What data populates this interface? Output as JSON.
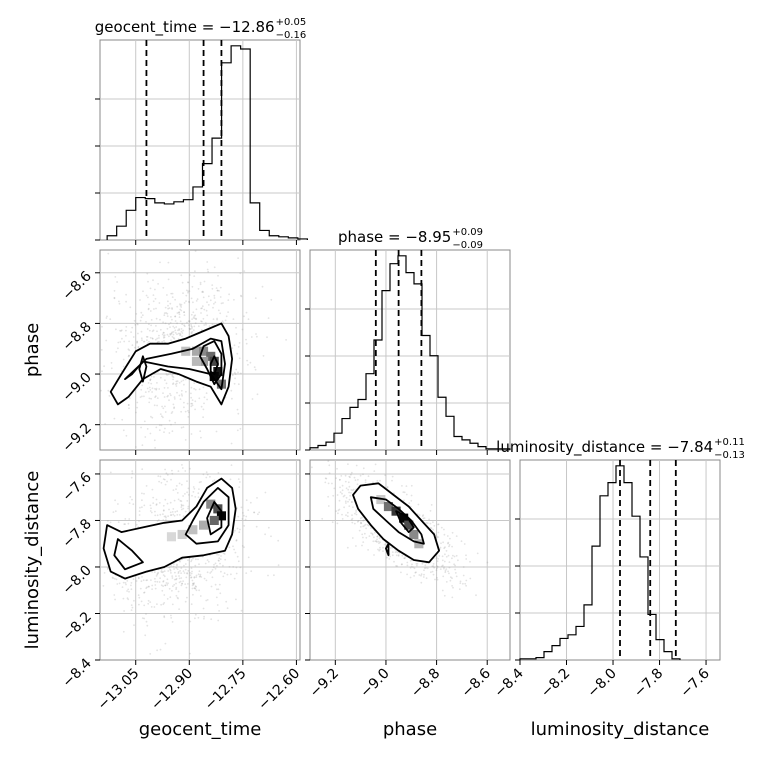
{
  "chart_data": {
    "type": "corner",
    "parameters": [
      "geocent_time",
      "phase",
      "luminosity_distance"
    ],
    "axis_labels": [
      "geocent_time",
      "phase",
      "luminosity_distance"
    ],
    "ranges": [
      [
        -13.15,
        -12.59
      ],
      [
        -9.3,
        -8.51
      ],
      [
        -8.4,
        -7.54
      ]
    ],
    "ticks": [
      {
        "values": [
          -13.05,
          -12.9,
          -12.75,
          -12.6
        ],
        "labels": [
          "−13.05",
          "−12.90",
          "−12.75",
          "−12.60"
        ]
      },
      {
        "values": [
          -9.2,
          -9.0,
          -8.8,
          -8.6
        ],
        "labels": [
          "−9.2",
          "−9.0",
          "−8.8",
          "−8.6"
        ]
      },
      {
        "values": [
          -8.4,
          -8.2,
          -8.0,
          -7.8,
          -7.6
        ],
        "labels": [
          "−8.4",
          "−8.2",
          "−8.0",
          "−7.8",
          "−7.6"
        ]
      }
    ],
    "grid": true,
    "summaries": [
      {
        "name": "geocent_time",
        "median": "−12.86",
        "plus": "+0.05",
        "minus": "−0.16",
        "quantiles": [
          -13.02,
          -12.86,
          -12.81
        ]
      },
      {
        "name": "phase",
        "median": "−8.95",
        "plus": "+0.09",
        "minus": "−0.09",
        "quantiles": [
          -9.04,
          -8.95,
          -8.86
        ]
      },
      {
        "name": "luminosity_distance",
        "median": "−7.84",
        "plus": "+0.11",
        "minus": "−0.13",
        "quantiles": [
          -7.97,
          -7.84,
          -7.73
        ]
      }
    ],
    "histograms": [
      {
        "param": 0,
        "edges_start": -13.13,
        "bin_width": 0.0267,
        "counts": [
          4,
          13,
          28,
          40,
          39,
          35,
          34,
          36,
          38,
          50,
          72,
          96,
          167,
          183,
          180,
          35,
          9,
          4,
          3,
          2,
          1
        ]
      },
      {
        "param": 1,
        "edges_start": -9.3,
        "bin_width": 0.0316,
        "counts": [
          2,
          4,
          7,
          15,
          28,
          38,
          45,
          68,
          98,
          142,
          166,
          173,
          158,
          148,
          102,
          84,
          47,
          30,
          12,
          9,
          6,
          3,
          1,
          1,
          1
        ]
      },
      {
        "param": 2,
        "edges_start": -8.4,
        "bin_width": 0.0344,
        "counts": [
          1,
          1,
          2,
          7,
          12,
          18,
          21,
          28,
          46,
          95,
          137,
          148,
          162,
          148,
          120,
          86,
          38,
          17,
          7,
          1
        ]
      }
    ],
    "joint": [
      {
        "x": 0,
        "y": 1,
        "contours": [
          [
            [
              -13.12,
              -9.07
            ],
            [
              -13.09,
              -9.0
            ],
            [
              -13.05,
              -8.91
            ],
            [
              -13.01,
              -8.88
            ],
            [
              -12.96,
              -8.88
            ],
            [
              -12.91,
              -8.86
            ],
            [
              -12.86,
              -8.83
            ],
            [
              -12.81,
              -8.8
            ],
            [
              -12.79,
              -8.85
            ],
            [
              -12.78,
              -8.94
            ],
            [
              -12.79,
              -9.05
            ],
            [
              -12.81,
              -9.12
            ],
            [
              -12.84,
              -9.05
            ],
            [
              -12.88,
              -9.03
            ],
            [
              -12.93,
              -9.0
            ],
            [
              -12.98,
              -8.98
            ],
            [
              -13.03,
              -9.02
            ],
            [
              -13.07,
              -9.09
            ],
            [
              -13.1,
              -9.12
            ]
          ],
          [
            [
              -13.08,
              -9.02
            ],
            [
              -13.02,
              -8.94
            ],
            [
              -12.95,
              -8.92
            ],
            [
              -12.89,
              -8.9
            ],
            [
              -12.84,
              -8.86
            ],
            [
              -12.81,
              -8.87
            ],
            [
              -12.8,
              -8.96
            ],
            [
              -12.81,
              -9.06
            ],
            [
              -12.84,
              -9.0
            ],
            [
              -12.9,
              -8.98
            ],
            [
              -12.96,
              -8.97
            ],
            [
              -13.03,
              -8.95
            ],
            [
              -13.06,
              -9.0
            ]
          ],
          [
            [
              -12.86,
              -8.89
            ],
            [
              -12.83,
              -8.87
            ],
            [
              -12.81,
              -8.92
            ],
            [
              -12.81,
              -9.0
            ],
            [
              -12.83,
              -9.04
            ],
            [
              -12.85,
              -8.98
            ],
            [
              -12.87,
              -8.93
            ]
          ],
          [
            [
              -12.84,
              -8.96
            ],
            [
              -12.83,
              -8.93
            ],
            [
              -12.82,
              -8.96
            ],
            [
              -12.83,
              -9.0
            ],
            [
              -12.84,
              -8.99
            ]
          ],
          [
            [
              -13.04,
              -8.98
            ],
            [
              -13.03,
              -8.93
            ],
            [
              -13.02,
              -8.97
            ],
            [
              -13.03,
              -9.03
            ]
          ]
        ],
        "density_cells": [
          {
            "x": -12.91,
            "y": -8.91,
            "level": 0.22
          },
          {
            "x": -12.88,
            "y": -8.91,
            "level": 0.32
          },
          {
            "x": -12.86,
            "y": -8.91,
            "level": 0.45
          },
          {
            "x": -12.84,
            "y": -8.93,
            "level": 0.58
          },
          {
            "x": -12.83,
            "y": -8.95,
            "level": 0.72
          },
          {
            "x": -12.82,
            "y": -8.99,
            "level": 0.92
          },
          {
            "x": -12.83,
            "y": -9.01,
            "level": 1.0
          },
          {
            "x": -12.86,
            "y": -8.95,
            "level": 0.38
          },
          {
            "x": -12.88,
            "y": -8.95,
            "level": 0.25
          },
          {
            "x": -12.81,
            "y": -9.04,
            "level": 0.55
          }
        ],
        "scatter_extent": {
          "x": [
            -13.14,
            -12.72
          ],
          "y": [
            -9.24,
            -8.58
          ]
        }
      },
      {
        "x": 0,
        "y": 2,
        "contours": [
          [
            [
              -13.13,
              -7.82
            ],
            [
              -13.09,
              -7.85
            ],
            [
              -13.03,
              -7.83
            ],
            [
              -12.97,
              -7.81
            ],
            [
              -12.92,
              -7.8
            ],
            [
              -12.88,
              -7.74
            ],
            [
              -12.85,
              -7.66
            ],
            [
              -12.81,
              -7.62
            ],
            [
              -12.78,
              -7.66
            ],
            [
              -12.77,
              -7.75
            ],
            [
              -12.78,
              -7.86
            ],
            [
              -12.8,
              -7.93
            ],
            [
              -12.86,
              -7.95
            ],
            [
              -12.92,
              -7.96
            ],
            [
              -12.97,
              -8.0
            ],
            [
              -13.02,
              -8.02
            ],
            [
              -13.08,
              -8.05
            ],
            [
              -13.12,
              -8.02
            ],
            [
              -13.14,
              -7.92
            ]
          ],
          [
            [
              -12.89,
              -7.8
            ],
            [
              -12.86,
              -7.72
            ],
            [
              -12.82,
              -7.66
            ],
            [
              -12.79,
              -7.7
            ],
            [
              -12.79,
              -7.82
            ],
            [
              -12.82,
              -7.89
            ],
            [
              -12.88,
              -7.9
            ],
            [
              -12.91,
              -7.86
            ]
          ],
          [
            [
              -12.85,
              -7.79
            ],
            [
              -12.83,
              -7.72
            ],
            [
              -12.81,
              -7.76
            ],
            [
              -12.81,
              -7.83
            ],
            [
              -12.84,
              -7.86
            ]
          ],
          [
            [
              -13.1,
              -7.88
            ],
            [
              -13.06,
              -7.93
            ],
            [
              -13.03,
              -7.98
            ],
            [
              -13.08,
              -8.01
            ],
            [
              -13.11,
              -7.95
            ]
          ]
        ],
        "density_cells": [
          {
            "x": -12.84,
            "y": -7.73,
            "level": 0.45
          },
          {
            "x": -12.82,
            "y": -7.75,
            "level": 0.7
          },
          {
            "x": -12.81,
            "y": -7.78,
            "level": 1.0
          },
          {
            "x": -12.83,
            "y": -7.8,
            "level": 0.6
          },
          {
            "x": -12.86,
            "y": -7.82,
            "level": 0.3
          },
          {
            "x": -12.89,
            "y": -7.84,
            "level": 0.22
          },
          {
            "x": -12.92,
            "y": -7.86,
            "level": 0.16
          },
          {
            "x": -12.95,
            "y": -7.87,
            "level": 0.12
          }
        ],
        "scatter_extent": {
          "x": [
            -13.14,
            -12.72
          ],
          "y": [
            -8.24,
            -7.58
          ]
        }
      },
      {
        "x": 1,
        "y": 2,
        "contours": [
          [
            [
              -9.1,
              -7.65
            ],
            [
              -9.03,
              -7.64
            ],
            [
              -8.97,
              -7.69
            ],
            [
              -8.91,
              -7.74
            ],
            [
              -8.86,
              -7.8
            ],
            [
              -8.81,
              -7.86
            ],
            [
              -8.79,
              -7.93
            ],
            [
              -8.83,
              -7.98
            ],
            [
              -8.89,
              -7.97
            ],
            [
              -8.95,
              -7.93
            ],
            [
              -9.01,
              -7.88
            ],
            [
              -9.06,
              -7.82
            ],
            [
              -9.11,
              -7.75
            ],
            [
              -9.13,
              -7.69
            ]
          ],
          [
            [
              -9.06,
              -7.7
            ],
            [
              -9.0,
              -7.71
            ],
            [
              -8.95,
              -7.75
            ],
            [
              -8.9,
              -7.8
            ],
            [
              -8.86,
              -7.86
            ],
            [
              -8.85,
              -7.9
            ],
            [
              -8.89,
              -7.89
            ],
            [
              -8.95,
              -7.85
            ],
            [
              -9.0,
              -7.8
            ],
            [
              -9.05,
              -7.75
            ]
          ],
          [
            [
              -8.96,
              -7.76
            ],
            [
              -8.92,
              -7.78
            ],
            [
              -8.89,
              -7.83
            ],
            [
              -8.91,
              -7.85
            ],
            [
              -8.94,
              -7.81
            ]
          ],
          [
            [
              -9.0,
              -7.92
            ],
            [
              -8.99,
              -7.9
            ],
            [
              -8.99,
              -7.95
            ]
          ]
        ],
        "density_cells": [
          {
            "x": -9.02,
            "y": -7.71,
            "level": 0.18
          },
          {
            "x": -8.99,
            "y": -7.74,
            "level": 0.55
          },
          {
            "x": -8.96,
            "y": -7.76,
            "level": 0.8
          },
          {
            "x": -8.93,
            "y": -7.79,
            "level": 1.0
          },
          {
            "x": -8.91,
            "y": -7.82,
            "level": 0.7
          },
          {
            "x": -8.89,
            "y": -7.86,
            "level": 0.45
          },
          {
            "x": -8.87,
            "y": -7.9,
            "level": 0.28
          }
        ],
        "scatter_extent": {
          "x": [
            -9.24,
            -8.7
          ],
          "y": [
            -8.08,
            -7.58
          ]
        }
      }
    ]
  }
}
